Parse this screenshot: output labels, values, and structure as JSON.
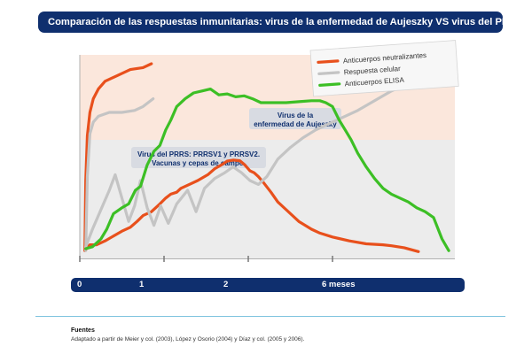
{
  "title": "Comparación de las respuestas inmunitarias: virus de la enfermedad de Aujeszky VS virus del PRRS",
  "chart_data": {
    "type": "line",
    "title": "Comparación de las respuestas inmunitarias: virus de la enfermedad de Aujeszky VS virus del PRRS",
    "x_ticks": [
      {
        "label": "0",
        "x": 0
      },
      {
        "label": "1",
        "x": 1
      },
      {
        "label": "2",
        "x": 2
      },
      {
        "label": "6 meses",
        "x": 3
      }
    ],
    "xlim": [
      0,
      4.4
    ],
    "ylim": [
      0,
      100
    ],
    "grid": false,
    "legend_position": "top-right",
    "annotations": {
      "aujeszky": [
        "Virus de la",
        "enfermedad de Aujeszky"
      ],
      "prrs": [
        "Virus del PRRS: PRRSV1 y PRRSV2.",
        "Vacunas y cepas de campo."
      ]
    },
    "series": [
      {
        "key": "aujeszky_neutralizantes",
        "name": "Anticuerpos neutralizantes",
        "color": "#e8501c",
        "x": [
          0.06,
          0.07,
          0.09,
          0.12,
          0.16,
          0.22,
          0.3,
          0.45,
          0.6,
          0.75,
          0.85
        ],
        "y": [
          4,
          40,
          63,
          75,
          82,
          87,
          91,
          94,
          97,
          98,
          100
        ]
      },
      {
        "key": "aujeszky_celular",
        "name": "Respuesta celular",
        "color": "#c4c4c4",
        "x": [
          0.07,
          0.09,
          0.12,
          0.16,
          0.22,
          0.35,
          0.5,
          0.65,
          0.75,
          0.87
        ],
        "y": [
          4,
          42,
          64,
          70,
          73,
          75,
          75,
          76,
          78,
          82
        ]
      },
      {
        "key": "prrs_neutralizantes",
        "name": "Anticuerpos neutralizantes",
        "color": "#e8501c",
        "x": [
          0.08,
          0.12,
          0.2,
          0.3,
          0.42,
          0.5,
          0.6,
          0.68,
          0.75,
          0.85,
          0.95,
          1.02,
          1.08,
          1.15,
          1.2,
          1.3,
          1.4,
          1.52,
          1.6,
          1.68,
          1.75,
          1.82,
          1.9,
          1.96,
          2.02,
          2.07,
          2.12,
          2.18,
          2.27,
          2.35,
          2.45,
          2.6,
          2.75,
          2.85,
          3.0,
          3.2,
          3.4,
          3.6,
          3.7,
          3.85,
          4.02
        ],
        "y": [
          5,
          7,
          7,
          9,
          12,
          14,
          16,
          19,
          22,
          24,
          28,
          31,
          33,
          34,
          36,
          38,
          40,
          43,
          46,
          48,
          50,
          50.5,
          50.2,
          48,
          45,
          44,
          42,
          39,
          34,
          29,
          25,
          19,
          15,
          13,
          11,
          9,
          7.5,
          7,
          6.5,
          5.5,
          3.5
        ]
      },
      {
        "key": "prrs_celular",
        "name": "Respuesta celular",
        "color": "#c4c4c4",
        "x": [
          0.07,
          0.15,
          0.25,
          0.35,
          0.42,
          0.5,
          0.58,
          0.65,
          0.72,
          0.8,
          0.88,
          0.96,
          1.05,
          1.15,
          1.28,
          1.38,
          1.48,
          1.6,
          1.72,
          1.82,
          1.92,
          2.02,
          2.12,
          2.22,
          2.35,
          2.5,
          2.65,
          2.8,
          2.95,
          3.1,
          3.3,
          3.5,
          3.7,
          3.95,
          4.2,
          4.4
        ],
        "y": [
          6,
          15,
          25,
          35,
          43,
          31,
          19,
          27,
          40,
          26,
          17,
          27,
          18,
          28,
          35,
          24,
          36,
          41,
          44,
          47,
          44,
          40,
          38,
          42,
          51,
          57,
          62,
          66,
          69,
          72,
          76,
          81,
          86,
          91,
          95,
          98
        ]
      },
      {
        "key": "prrs_elisa",
        "name": "Anticuerpos ELISA",
        "color": "#3cbf25",
        "x": [
          0.07,
          0.15,
          0.25,
          0.32,
          0.4,
          0.5,
          0.58,
          0.66,
          0.72,
          0.8,
          0.88,
          0.95,
          1.02,
          1.08,
          1.15,
          1.25,
          1.35,
          1.45,
          1.55,
          1.65,
          1.75,
          1.85,
          1.95,
          2.05,
          2.15,
          2.3,
          2.45,
          2.6,
          2.75,
          2.85,
          2.92,
          3.0,
          3.08,
          3.15,
          3.22,
          3.3,
          3.4,
          3.5,
          3.6,
          3.7,
          3.8,
          3.9,
          4.0,
          4.1,
          4.2,
          4.3,
          4.38
        ],
        "y": [
          5,
          6,
          10,
          15,
          23,
          26,
          28,
          35,
          37,
          48,
          55,
          58,
          66,
          71,
          78,
          82,
          85,
          86,
          87,
          84,
          84.5,
          83,
          83.5,
          82,
          80,
          80,
          80,
          80.5,
          81,
          81,
          80,
          78,
          71,
          66,
          61,
          54,
          47,
          41,
          36,
          33,
          31,
          29,
          26,
          24,
          21,
          10,
          4
        ]
      }
    ]
  },
  "legend": {
    "items": [
      {
        "label": "Anticuerpos neutralizantes",
        "color": "#e8501c"
      },
      {
        "label": "Respuesta celular",
        "color": "#c4c4c4"
      },
      {
        "label": "Anticuerpos ELISA",
        "color": "#3cbf25"
      }
    ]
  },
  "sources": {
    "title": "Fuentes",
    "text": "Adaptado a partir de Meier y col. (2003), López y Osorio (2004) y Díaz y col. (2005 y 2006)."
  },
  "colors": {
    "navy": "#0f2f6e",
    "aujeszky_background": "#fbe7dc",
    "prrs_background": "#ececec",
    "label_box": "#d8dbe2",
    "divider": "#7fc4df"
  }
}
